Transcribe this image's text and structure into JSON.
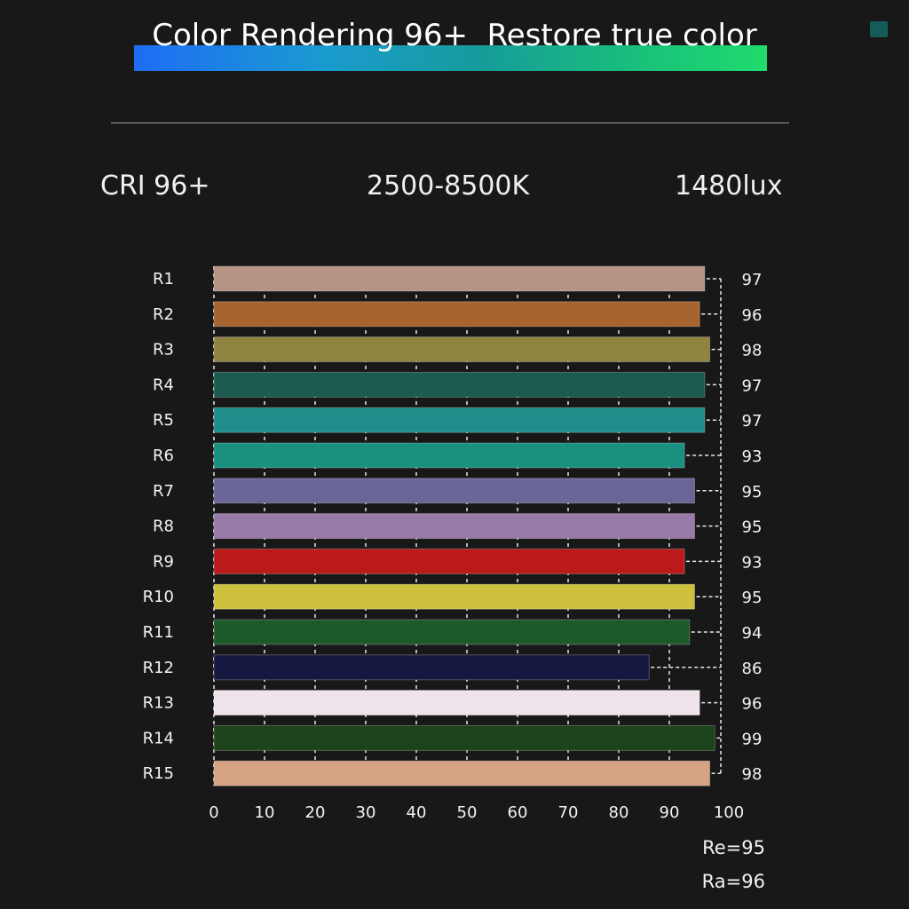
{
  "header": {
    "title": "Color Rendering 96+  Restore true color",
    "logo": "watermark"
  },
  "specs": {
    "cri": "CRI 96+",
    "cct": "2500-8500K",
    "lux": "1480lux"
  },
  "chart_data": {
    "type": "bar",
    "orientation": "horizontal",
    "categories": [
      "R1",
      "R2",
      "R3",
      "R4",
      "R5",
      "R6",
      "R7",
      "R8",
      "R9",
      "R10",
      "R11",
      "R12",
      "R13",
      "R14",
      "R15"
    ],
    "values": [
      97,
      96,
      98,
      97,
      97,
      93,
      95,
      95,
      93,
      95,
      94,
      86,
      96,
      99,
      98
    ],
    "colors": [
      "#b69384",
      "#a8642f",
      "#8f8441",
      "#1c5b4f",
      "#1f8d8a",
      "#1a9180",
      "#6b6698",
      "#977aa8",
      "#bb1a1b",
      "#cdc13e",
      "#1d5a2a",
      "#16183f",
      "#f0e4ec",
      "#1c431b",
      "#d6a284"
    ],
    "xlim": [
      0,
      100
    ],
    "xticks": [
      "0",
      "10",
      "20",
      "30",
      "40",
      "50",
      "60",
      "70",
      "80",
      "90",
      "100"
    ],
    "grid": "dashed vertical",
    "annotations": [
      "Re=95",
      "Ra=96"
    ]
  }
}
